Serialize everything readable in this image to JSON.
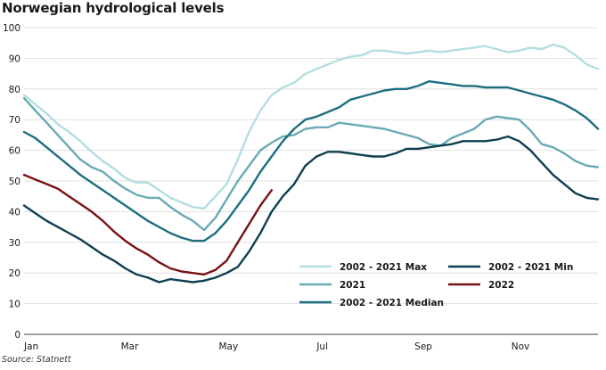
{
  "title": "Norwegian hydrological levels",
  "source": "Source: Statnett",
  "chart_data": {
    "type": "line",
    "title": "Norwegian hydrological levels",
    "xlabel": "",
    "ylabel": "",
    "ylim": [
      0,
      100
    ],
    "yticks": [
      0,
      10,
      20,
      30,
      40,
      50,
      60,
      70,
      80,
      90,
      100
    ],
    "xlim": [
      1,
      52
    ],
    "xticks": [
      {
        "label": "Jan",
        "week": 1
      },
      {
        "label": "Mar",
        "week": 9.6
      },
      {
        "label": "May",
        "week": 18.3
      },
      {
        "label": "Jul",
        "week": 27
      },
      {
        "label": "Sep",
        "week": 35.7
      },
      {
        "label": "Nov",
        "week": 44.3
      }
    ],
    "x_unit": "week",
    "grid": {
      "horizontal": true,
      "vertical": false
    },
    "legend": {
      "position": "bottom-right"
    },
    "series": [
      {
        "name": "2002 - 2021 Max",
        "color": "#b3dee2",
        "x": [
          1,
          2,
          3,
          4,
          5,
          6,
          7,
          8,
          9,
          10,
          11,
          12,
          13,
          14,
          15,
          16,
          17,
          18,
          19,
          20,
          21,
          22,
          23,
          24,
          25,
          26,
          27,
          28,
          29,
          30,
          31,
          32,
          33,
          34,
          35,
          36,
          37,
          38,
          39,
          40,
          41,
          42,
          43,
          44,
          45,
          46,
          47,
          48,
          49,
          50,
          51,
          52
        ],
        "values": [
          78,
          75,
          72,
          68.5,
          66,
          63,
          59.5,
          56.5,
          54,
          51,
          49.5,
          49.5,
          47,
          44.5,
          43,
          41.5,
          41,
          45,
          49,
          57,
          66,
          73,
          78,
          80.5,
          82,
          85,
          86.5,
          88,
          89.5,
          90.5,
          91,
          92.5,
          92.5,
          92,
          91.5,
          92,
          92.5,
          92,
          92.5,
          93,
          93.5,
          94,
          93,
          92,
          92.5,
          93.5,
          93,
          94.5,
          93.5,
          91,
          88,
          86.5
        ]
      },
      {
        "name": "2021",
        "color": "#6aaab5",
        "x": [
          1,
          2,
          3,
          4,
          5,
          6,
          7,
          8,
          9,
          10,
          11,
          12,
          13,
          14,
          15,
          16,
          17,
          18,
          19,
          20,
          21,
          22,
          23,
          24,
          25,
          26,
          27,
          28,
          29,
          30,
          31,
          32,
          33,
          34,
          35,
          36,
          37,
          38,
          39,
          40,
          41,
          42,
          43,
          44,
          45,
          46,
          47,
          48,
          49,
          50,
          51,
          52
        ],
        "values": [
          77,
          73,
          69,
          65,
          61,
          57,
          54.5,
          53,
          50,
          47.5,
          45.5,
          44.5,
          44.5,
          41.5,
          39,
          37,
          34,
          38,
          44,
          50,
          55,
          60,
          62.5,
          64.5,
          65,
          67,
          67.5,
          67.5,
          69,
          68.5,
          68,
          67.5,
          67,
          66,
          65,
          64,
          62,
          61.5,
          64,
          65.5,
          67,
          70,
          71,
          70.5,
          70,
          66.5,
          62,
          61,
          59,
          56.5,
          55,
          54.5
        ]
      },
      {
        "name": "2002 - 2021 Median",
        "color": "#1d6e80",
        "x": [
          1,
          2,
          3,
          4,
          5,
          6,
          7,
          8,
          9,
          10,
          11,
          12,
          13,
          14,
          15,
          16,
          17,
          18,
          19,
          20,
          21,
          22,
          23,
          24,
          25,
          26,
          27,
          28,
          29,
          30,
          31,
          32,
          33,
          34,
          35,
          36,
          37,
          38,
          39,
          40,
          41,
          42,
          43,
          44,
          45,
          46,
          47,
          48,
          49,
          50,
          51,
          52
        ],
        "values": [
          66,
          64,
          61,
          58,
          55,
          52,
          49.5,
          47,
          44.5,
          42,
          39.5,
          37,
          35,
          33,
          31.5,
          30.5,
          30.5,
          33,
          37,
          42,
          47,
          53,
          58,
          63,
          67,
          70,
          71,
          72.5,
          74,
          76.5,
          77.5,
          78.5,
          79.5,
          80,
          80,
          81,
          82.5,
          82,
          81.5,
          81,
          81,
          80.5,
          80.5,
          80.5,
          79.5,
          78.5,
          77.5,
          76.5,
          75,
          73,
          70.5,
          67
        ]
      },
      {
        "name": "2002 - 2021 Min",
        "color": "#0f3f4f",
        "x": [
          1,
          2,
          3,
          4,
          5,
          6,
          7,
          8,
          9,
          10,
          11,
          12,
          13,
          14,
          15,
          16,
          17,
          18,
          19,
          20,
          21,
          22,
          23,
          24,
          25,
          26,
          27,
          28,
          29,
          30,
          31,
          32,
          33,
          34,
          35,
          36,
          37,
          38,
          39,
          40,
          41,
          42,
          43,
          44,
          45,
          46,
          47,
          48,
          49,
          50,
          51,
          52
        ],
        "values": [
          42,
          39.5,
          37,
          35,
          33,
          31,
          28.5,
          26,
          24,
          21.5,
          19.5,
          18.5,
          17,
          18,
          17.5,
          17,
          17.5,
          18.5,
          20,
          22,
          27,
          33,
          40,
          45,
          49,
          55,
          58,
          59.5,
          59.5,
          59,
          58.5,
          58,
          58,
          59,
          60.5,
          60.5,
          61,
          61.5,
          62,
          63,
          63,
          63,
          63.5,
          64.5,
          63,
          60,
          56,
          52,
          49,
          46,
          44.5,
          44
        ]
      },
      {
        "name": "2022",
        "color": "#7a1214",
        "x": [
          1,
          2,
          3,
          4,
          5,
          6,
          7,
          8,
          9,
          10,
          11,
          12,
          13,
          14,
          15,
          16,
          17,
          18,
          19,
          20,
          21,
          22,
          23
        ],
        "values": [
          52,
          50.5,
          49,
          47.5,
          45,
          42.5,
          40,
          37,
          33.5,
          30.5,
          28,
          26,
          23.5,
          21.5,
          20.5,
          20,
          19.5,
          21,
          24,
          30,
          36,
          42,
          47
        ]
      }
    ]
  }
}
